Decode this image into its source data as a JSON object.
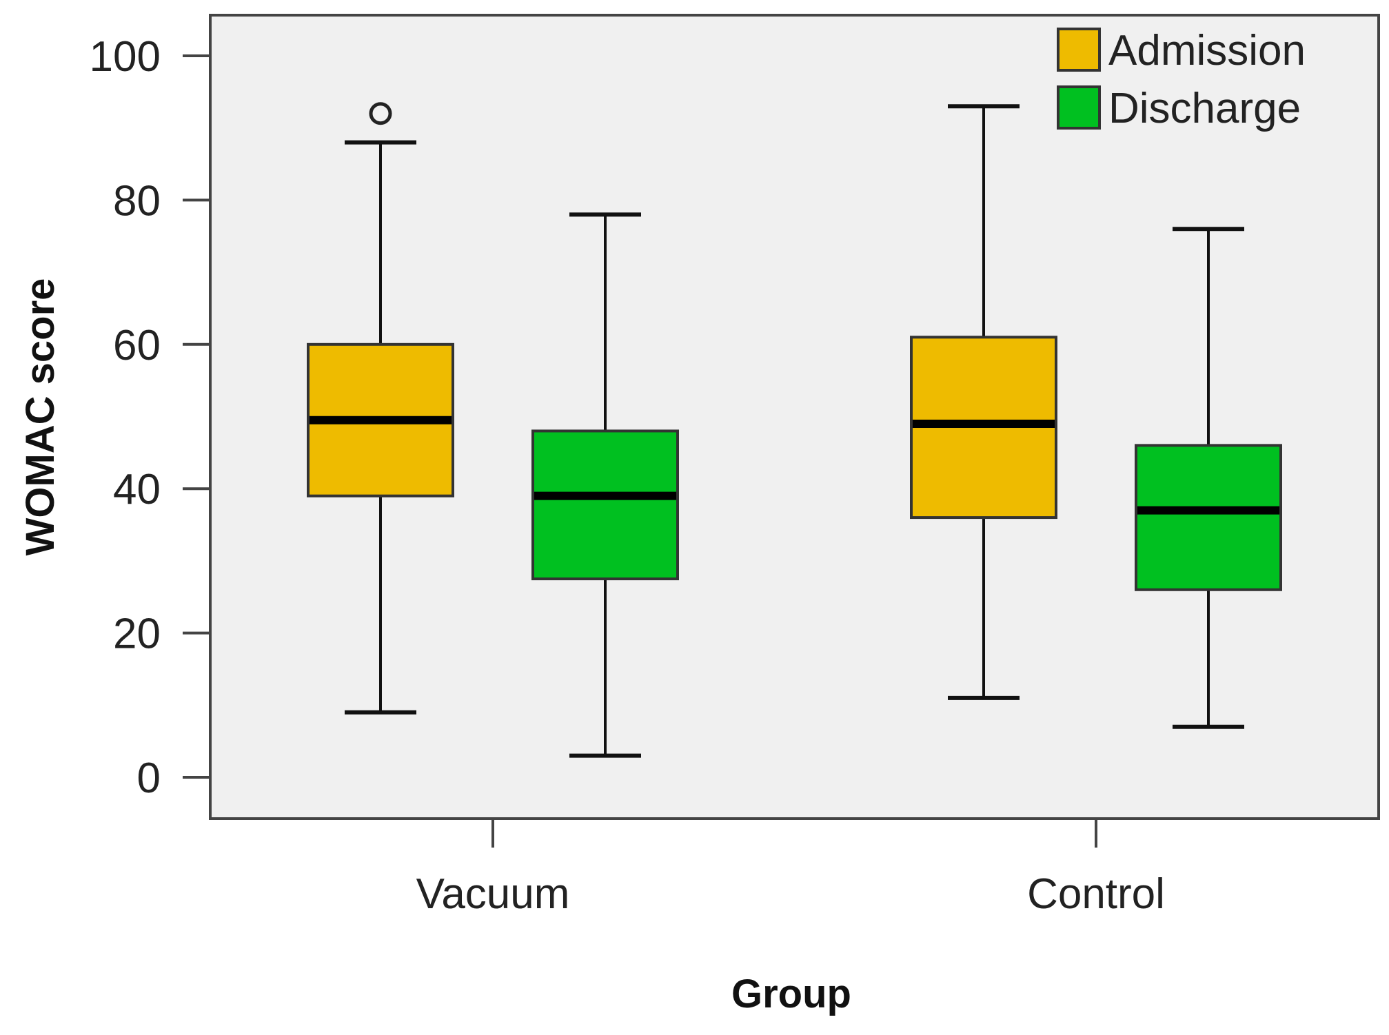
{
  "chart_data": {
    "type": "boxplot",
    "title": "",
    "xlabel": "Group",
    "ylabel": "WOMAC score",
    "ylim": [
      -6,
      106
    ],
    "yticks": [
      0,
      20,
      40,
      60,
      80,
      100
    ],
    "yticklabels": [
      "0",
      "20",
      "40",
      "60",
      "80",
      "100"
    ],
    "categories": [
      "Vacuum",
      "Control"
    ],
    "legend_position": "top-right",
    "grid": false,
    "series": [
      {
        "name": "Admission",
        "color": "#eebb00",
        "boxes": [
          {
            "category": "Vacuum",
            "min": 9,
            "q1": 39,
            "median": 49.5,
            "q3": 60,
            "max": 88,
            "outliers": [
              92
            ]
          },
          {
            "category": "Control",
            "min": 11,
            "q1": 36,
            "median": 49,
            "q3": 61,
            "max": 93,
            "outliers": []
          }
        ]
      },
      {
        "name": "Discharge",
        "color": "#00c020",
        "boxes": [
          {
            "category": "Vacuum",
            "min": 3,
            "q1": 27.5,
            "median": 39,
            "q3": 48,
            "max": 78,
            "outliers": []
          },
          {
            "category": "Control",
            "min": 7,
            "q1": 26,
            "median": 37,
            "q3": 46,
            "max": 76,
            "outliers": []
          }
        ]
      }
    ]
  },
  "colors": {
    "plot_background": "#f0f0f0",
    "axis": "#444444",
    "median": "#000000",
    "whisker": "#111111"
  }
}
